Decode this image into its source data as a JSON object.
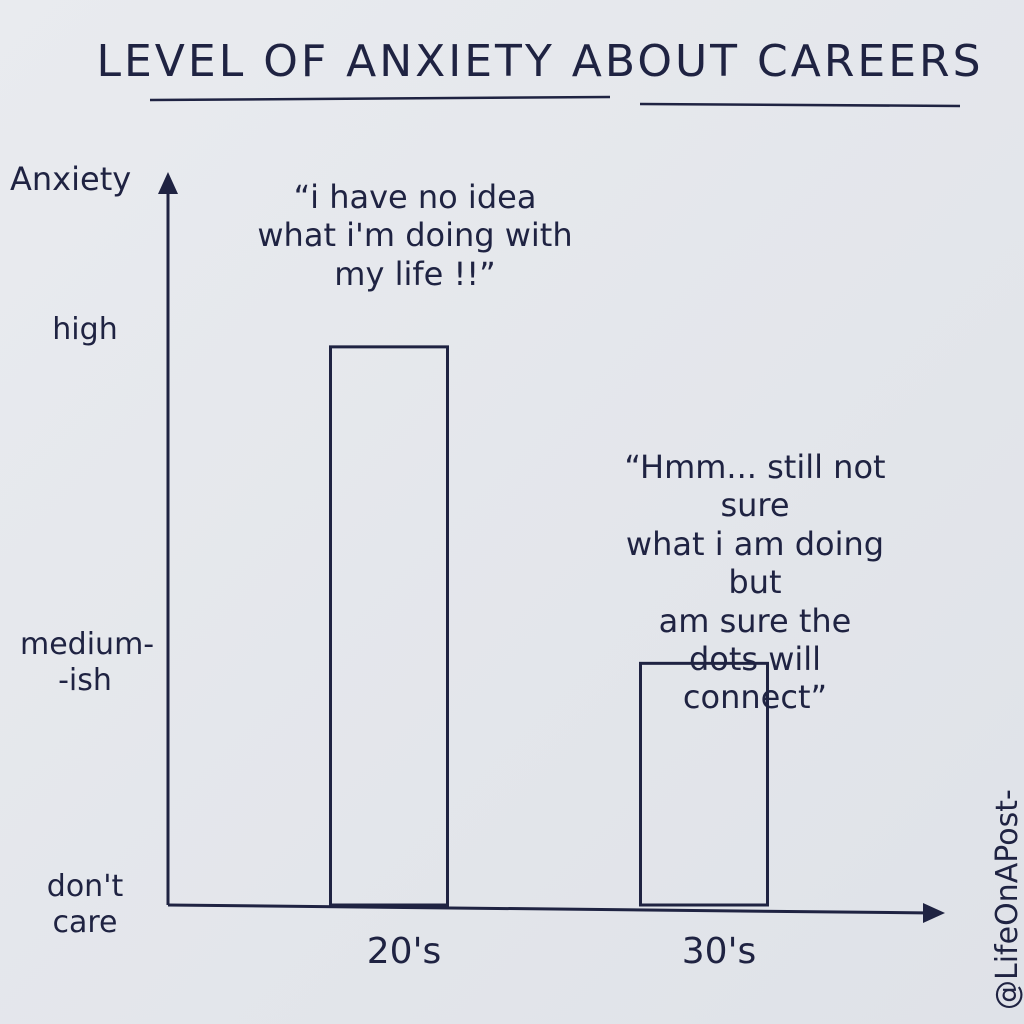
{
  "chart_data": {
    "type": "bar",
    "title": "LEVEL OF ANXIETY ABOUT CAREERS",
    "y_label": "Anxiety",
    "categories": [
      "20's",
      "30's"
    ],
    "values": [
      9.7,
      4.2
    ],
    "color": "#1f2342",
    "ylim": [
      0,
      12.6
    ],
    "yticks": [
      {
        "value": 0,
        "label": "don't\ncare"
      },
      {
        "value": 4.2,
        "label": "medium-\n-ish"
      },
      {
        "value": 10,
        "label": "high"
      }
    ],
    "annotations": [
      "“i have no idea\nwhat i'm doing with\nmy life !!”",
      "“Hmm... still not sure\nwhat i am doing but\nam sure the dots will\nconnect”"
    ],
    "credit": "@LifeOnAPost-it"
  }
}
